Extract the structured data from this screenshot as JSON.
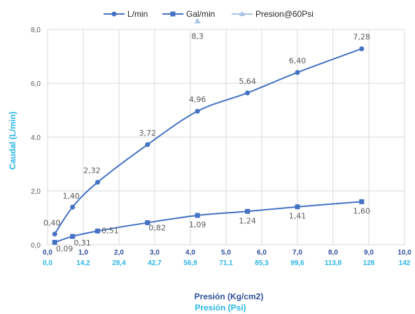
{
  "colors": {
    "series_line": "#4472C4",
    "psi_axis": "#29B6E6",
    "kg_axis": "#2F4F9C",
    "grid": "#D9D9D9",
    "label": "#595959",
    "marker_triangle": "#A9C4E8"
  },
  "chart_data": {
    "type": "line",
    "title": "",
    "legend": [
      "L/min",
      "Gal/min",
      "Presion@60Psi"
    ],
    "legend_position": "top",
    "xlabel": "Presión (Kg/cm2)",
    "xlabel2": "Presión (Psi)",
    "ylabel": "Caudal (L/min)",
    "xlim": [
      0,
      10
    ],
    "ylim": [
      0,
      8
    ],
    "grid": true,
    "x_ticks": [
      "0,0",
      "1,0",
      "2,0",
      "3,0",
      "4,0",
      "5,0",
      "6,0",
      "7,0",
      "8,0",
      "9,0",
      "10,0"
    ],
    "x2_ticks": [
      "0,0",
      "14,2",
      "28,4",
      "42,7",
      "56,9",
      "71,1",
      "85,3",
      "99,6",
      "113,8",
      "128",
      "142"
    ],
    "y_ticks": [
      "0,0",
      "2,0",
      "4,0",
      "6,0",
      "8,0"
    ],
    "series": [
      {
        "name": "L/min",
        "marker": "circle",
        "points": [
          {
            "x": 0.2,
            "y": 0.4,
            "label": "0,40"
          },
          {
            "x": 0.7,
            "y": 1.4,
            "label": "1,40"
          },
          {
            "x": 1.4,
            "y": 2.32,
            "label": "2,32"
          },
          {
            "x": 2.8,
            "y": 3.72,
            "label": "3,72"
          },
          {
            "x": 4.2,
            "y": 4.96,
            "label": "4,96"
          },
          {
            "x": 5.6,
            "y": 5.64,
            "label": "5,64"
          },
          {
            "x": 7.0,
            "y": 6.4,
            "label": "6,40"
          },
          {
            "x": 8.8,
            "y": 7.28,
            "label": "7,28"
          }
        ]
      },
      {
        "name": "Gal/min",
        "marker": "square",
        "points": [
          {
            "x": 0.2,
            "y": 0.09,
            "label": "0,09"
          },
          {
            "x": 0.7,
            "y": 0.31,
            "label": "0,31"
          },
          {
            "x": 1.4,
            "y": 0.51,
            "label": "0,51"
          },
          {
            "x": 2.8,
            "y": 0.82,
            "label": "0,82"
          },
          {
            "x": 4.2,
            "y": 1.09,
            "label": "1,09"
          },
          {
            "x": 5.6,
            "y": 1.24,
            "label": "1,24"
          },
          {
            "x": 7.0,
            "y": 1.41,
            "label": "1,41"
          },
          {
            "x": 8.8,
            "y": 1.6,
            "label": "1,60"
          }
        ]
      },
      {
        "name": "Presion@60Psi",
        "marker": "triangle",
        "points": [
          {
            "x": 4.2,
            "y": 8.3,
            "label": "8,3"
          }
        ]
      }
    ]
  }
}
